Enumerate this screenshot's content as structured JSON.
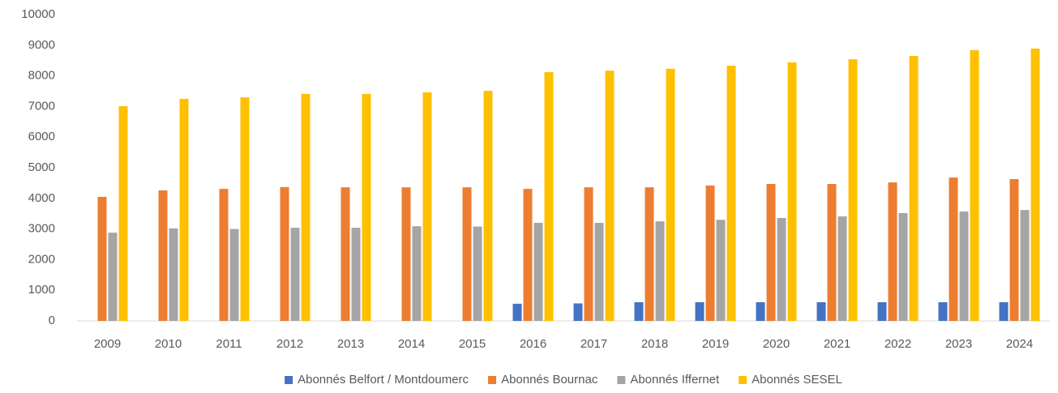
{
  "chart_data": {
    "type": "bar",
    "categories": [
      "2009",
      "2010",
      "2011",
      "2012",
      "2013",
      "2014",
      "2015",
      "2016",
      "2017",
      "2018",
      "2019",
      "2020",
      "2021",
      "2022",
      "2023",
      "2024"
    ],
    "series": [
      {
        "name": "Abonnés Belfort / Montdoumerc",
        "color": "#4472c4",
        "values": [
          null,
          null,
          null,
          null,
          null,
          null,
          null,
          560,
          570,
          610,
          610,
          610,
          610,
          610,
          610,
          610
        ]
      },
      {
        "name": "Abonnés Bournac",
        "color": "#ed7d31",
        "values": [
          4050,
          4260,
          4310,
          4370,
          4360,
          4360,
          4360,
          4310,
          4360,
          4360,
          4420,
          4470,
          4470,
          4520,
          4680,
          4630
        ]
      },
      {
        "name": "Abonnés Iffernet",
        "color": "#a5a5a5",
        "values": [
          2880,
          3020,
          3000,
          3040,
          3040,
          3090,
          3080,
          3200,
          3200,
          3250,
          3300,
          3360,
          3410,
          3520,
          3570,
          3620
        ]
      },
      {
        "name": "Abonnés SESEL",
        "color": "#ffc000",
        "values": [
          7010,
          7250,
          7300,
          7410,
          7410,
          7460,
          7510,
          8120,
          8170,
          8230,
          8330,
          8440,
          8540,
          8650,
          8840,
          8890
        ]
      }
    ],
    "ylim": [
      0,
      10000
    ],
    "yticks": [
      0,
      1000,
      2000,
      3000,
      4000,
      5000,
      6000,
      7000,
      8000,
      9000,
      10000
    ],
    "grid": false,
    "legend": "bottom"
  }
}
